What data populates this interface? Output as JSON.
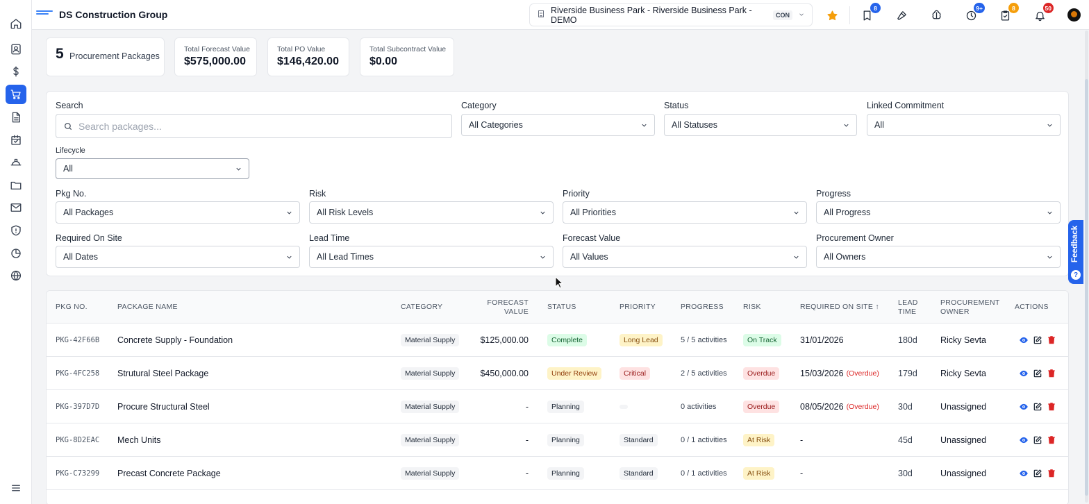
{
  "header": {
    "company": "DS Construction Group",
    "project": "Riverside Business Park - Riverside Business Park - DEMO",
    "project_code": "CON",
    "badges": {
      "bookmarks": "8",
      "time": "9+",
      "tasks": "8",
      "notifications": "50"
    }
  },
  "sidebar": {
    "items": [
      {
        "icon": "home-icon"
      },
      {
        "icon": "contacts-icon"
      },
      {
        "icon": "dollar-icon"
      },
      {
        "icon": "cart-icon",
        "active": true
      },
      {
        "icon": "document-icon"
      },
      {
        "icon": "calendar-icon"
      },
      {
        "icon": "hardhat-icon"
      },
      {
        "icon": "folder-icon"
      },
      {
        "icon": "mail-icon"
      },
      {
        "icon": "shield-icon"
      },
      {
        "icon": "chart-pie-icon"
      },
      {
        "icon": "globe-icon"
      },
      {
        "icon": "menu-icon"
      }
    ]
  },
  "stats": {
    "packages_count": "5",
    "packages_label": "Procurement Packages",
    "forecast_label": "Total Forecast Value",
    "forecast_value": "$575,000.00",
    "po_label": "Total PO Value",
    "po_value": "$146,420.00",
    "subcontract_label": "Total Subcontract Value",
    "subcontract_value": "$0.00"
  },
  "filters": {
    "search_label": "Search",
    "search_placeholder": "Search packages...",
    "category_label": "Category",
    "category_value": "All Categories",
    "status_label": "Status",
    "status_value": "All Statuses",
    "linked_label": "Linked Commitment",
    "linked_value": "All",
    "lifecycle_label": "Lifecycle",
    "lifecycle_value": "All",
    "pkgno_label": "Pkg No.",
    "pkgno_value": "All Packages",
    "risk_label": "Risk",
    "risk_value": "All Risk Levels",
    "priority_label": "Priority",
    "priority_value": "All Priorities",
    "progress_label": "Progress",
    "progress_value": "All Progress",
    "required_label": "Required On Site",
    "required_value": "All Dates",
    "leadtime_label": "Lead Time",
    "leadtime_value": "All Lead Times",
    "forecast_label": "Forecast Value",
    "forecast_value": "All Values",
    "owner_label": "Procurement Owner",
    "owner_value": "All Owners"
  },
  "table": {
    "headers": {
      "pkg_no": "PKG NO.",
      "name": "PACKAGE NAME",
      "category": "CATEGORY",
      "forecast_1": "FORECAST",
      "forecast_2": "VALUE",
      "status": "STATUS",
      "priority": "PRIORITY",
      "progress": "PROGRESS",
      "risk": "RISK",
      "required": "REQUIRED ON SITE ↑",
      "lead_1": "LEAD",
      "lead_2": "TIME",
      "owner_1": "PROCUREMENT",
      "owner_2": "OWNER",
      "actions": "ACTIONS"
    },
    "rows": [
      {
        "id": "PKG-42F66B",
        "name": "Concrete Supply - Foundation",
        "category": "Material Supply",
        "forecast": "$125,000.00",
        "status": "Complete",
        "status_color": "green",
        "priority": "Long Lead",
        "priority_color": "yellow",
        "progress": "5 / 5 activities",
        "risk": "On Track",
        "risk_color": "green",
        "required": "31/01/2026",
        "overdue": "",
        "lead": "180d",
        "owner": "Ricky Sevta"
      },
      {
        "id": "PKG-4FC258",
        "name": "Strutural Steel Package",
        "category": "Material Supply",
        "forecast": "$450,000.00",
        "status": "Under Review",
        "status_color": "amber",
        "priority": "Critical",
        "priority_color": "red",
        "progress": "2 / 5 activities",
        "risk": "Overdue",
        "risk_color": "red",
        "required": "15/03/2026",
        "overdue": "(Overdue)",
        "lead": "179d",
        "owner": "Ricky Sevta"
      },
      {
        "id": "PKG-397D7D",
        "name": "Procure Structural Steel",
        "category": "Material Supply",
        "forecast": "-",
        "status": "Planning",
        "status_color": "gray",
        "priority": "",
        "priority_color": "empty",
        "progress": "0 activities",
        "risk": "Overdue",
        "risk_color": "red",
        "required": "08/05/2026",
        "overdue": "(Overdue)",
        "lead": "30d",
        "owner": "Unassigned"
      },
      {
        "id": "PKG-8D2EAC",
        "name": "Mech Units",
        "category": "Material Supply",
        "forecast": "-",
        "status": "Planning",
        "status_color": "gray",
        "priority": "Standard",
        "priority_color": "gray",
        "progress": "0 / 1 activities",
        "risk": "At Risk",
        "risk_color": "yellow",
        "required": "-",
        "overdue": "",
        "lead": "45d",
        "owner": "Unassigned"
      },
      {
        "id": "PKG-C73299",
        "name": "Precast Concrete Package",
        "category": "Material Supply",
        "forecast": "-",
        "status": "Planning",
        "status_color": "gray",
        "priority": "Standard",
        "priority_color": "gray",
        "progress": "0 / 1 activities",
        "risk": "At Risk",
        "risk_color": "yellow",
        "required": "-",
        "overdue": "",
        "lead": "30d",
        "owner": "Unassigned"
      }
    ]
  },
  "feedback": {
    "label": "Feedback",
    "help": "?"
  },
  "colors": {
    "accent": "#2563eb",
    "danger": "#dc2626",
    "badge_blue": "#2563eb",
    "badge_orange": "#f59e0b",
    "badge_red": "#dc2626"
  }
}
